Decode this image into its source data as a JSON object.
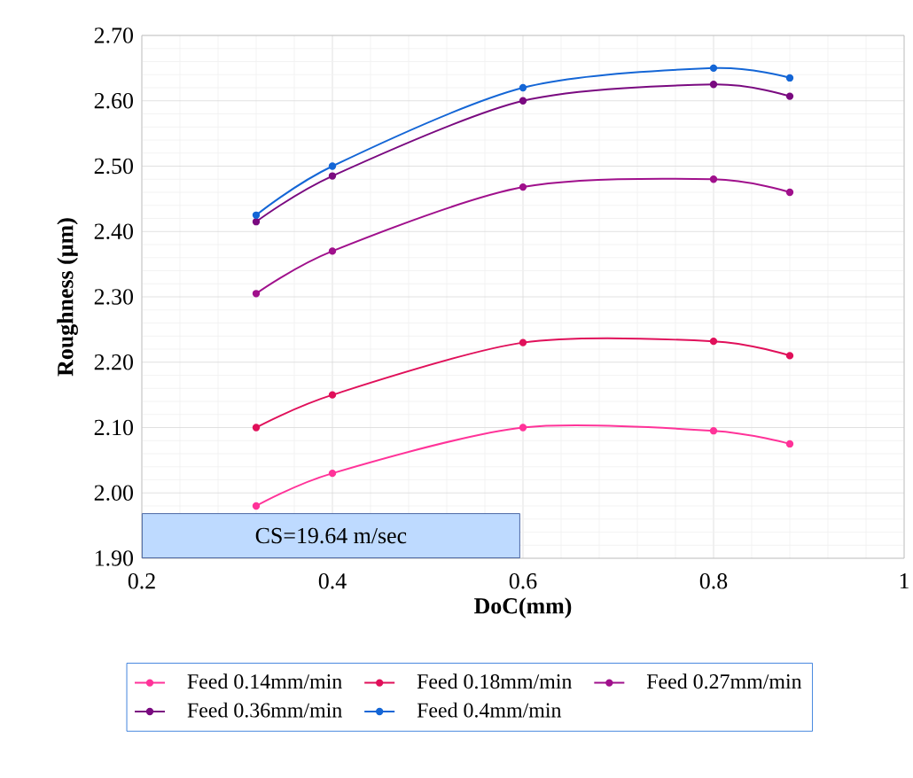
{
  "chart_data": {
    "type": "line",
    "xlabel": "DoC(mm)",
    "ylabel": "Roughness (µm)",
    "x": [
      0.32,
      0.4,
      0.6,
      0.8,
      0.88
    ],
    "series": [
      {
        "name": "Feed 0.14mm/min",
        "color": "#ff3399",
        "values": [
          1.98,
          2.03,
          2.1,
          2.095,
          2.075
        ]
      },
      {
        "name": "Feed 0.18mm/min",
        "color": "#e0105a",
        "values": [
          2.1,
          2.15,
          2.23,
          2.232,
          2.21
        ]
      },
      {
        "name": "Feed 0.27mm/min",
        "color": "#a0108c",
        "values": [
          2.305,
          2.37,
          2.468,
          2.48,
          2.46
        ]
      },
      {
        "name": "Feed 0.36mm/min",
        "color": "#7a0a80",
        "values": [
          2.415,
          2.485,
          2.6,
          2.625,
          2.607
        ]
      },
      {
        "name": "Feed 0.4mm/min",
        "color": "#1466d6",
        "values": [
          2.425,
          2.5,
          2.62,
          2.65,
          2.635
        ]
      }
    ],
    "xlim": [
      0.2,
      1
    ],
    "xticks": [
      0.2,
      0.4,
      0.6,
      0.8,
      1
    ],
    "ylim": [
      1.9,
      2.7
    ],
    "yticks": [
      {
        "value": 1.9,
        "label": "1.90"
      },
      {
        "value": 2.0,
        "label": "2.00"
      },
      {
        "value": 2.1,
        "label": "2.10"
      },
      {
        "value": 2.2,
        "label": "2.20"
      },
      {
        "value": 2.3,
        "label": "2.30"
      },
      {
        "value": 2.4,
        "label": "2.40"
      },
      {
        "value": 2.5,
        "label": "2.50"
      },
      {
        "value": 2.6,
        "label": "2.60"
      },
      {
        "value": 2.7,
        "label": "2.70"
      }
    ],
    "annotations": [
      "CS=19.64 m/sec"
    ],
    "grid": true,
    "legend": "bottom",
    "marker": "circle",
    "line_style": "solid"
  }
}
